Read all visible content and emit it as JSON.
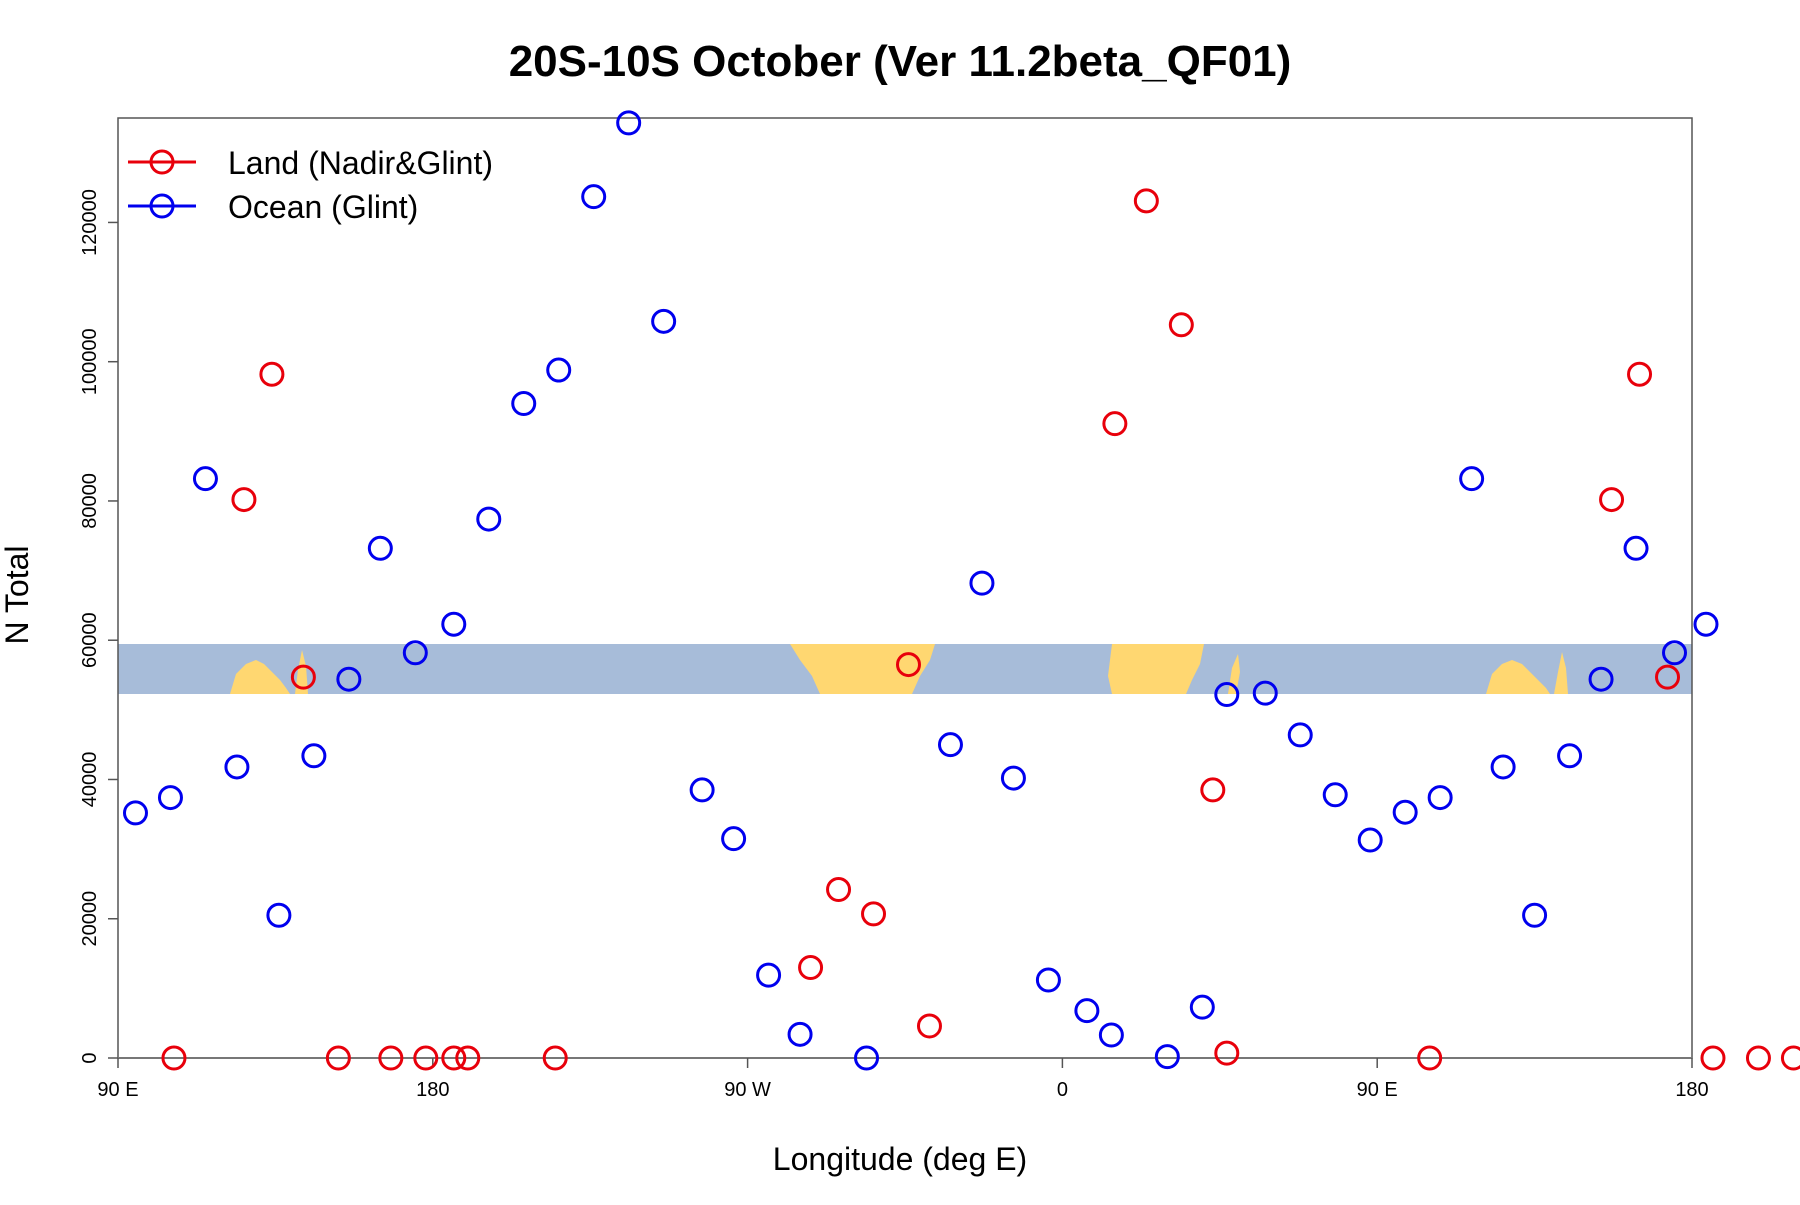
{
  "chart_data": {
    "type": "scatter",
    "title": "20S-10S October (Ver 11.2beta_QF01)",
    "xlabel": "Longitude (deg E)",
    "ylabel": "N Total",
    "xlim": [
      90,
      540
    ],
    "ylim": [
      0,
      135000
    ],
    "x_ticks": [
      {
        "value": 90,
        "label": "90 E"
      },
      {
        "value": 180,
        "label": "180"
      },
      {
        "value": 270,
        "label": "90 W"
      },
      {
        "value": 360,
        "label": "0"
      },
      {
        "value": 450,
        "label": "90 E"
      },
      {
        "value": 540,
        "label": "180"
      }
    ],
    "y_ticks": [
      {
        "value": 0,
        "label": "0"
      },
      {
        "value": 20000,
        "label": "20000"
      },
      {
        "value": 40000,
        "label": "40000"
      },
      {
        "value": 60000,
        "label": "60000"
      },
      {
        "value": 80000,
        "label": "80000"
      },
      {
        "value": 100000,
        "label": "100000"
      },
      {
        "value": 120000,
        "label": "120000"
      }
    ],
    "legend_position": "top-left",
    "grid": false,
    "map_strip": {
      "ocean_color": "#a7bcd9",
      "land_color": "#ffd771"
    },
    "series": [
      {
        "name": "Land (Nadir&Glint)",
        "color": "#e8000b",
        "points": [
          [
            106,
            0
          ],
          [
            126,
            80200
          ],
          [
            134,
            98200
          ],
          [
            143,
            54700
          ],
          [
            153,
            0
          ],
          [
            168,
            0
          ],
          [
            178,
            0
          ],
          [
            186,
            0
          ],
          [
            190,
            0
          ],
          [
            215,
            0
          ],
          [
            288,
            13000
          ],
          [
            296,
            24200
          ],
          [
            306,
            20700
          ],
          [
            316,
            56500
          ],
          [
            322,
            4600
          ],
          [
            375,
            91100
          ],
          [
            384,
            123100
          ],
          [
            394,
            105300
          ],
          [
            403,
            38500
          ],
          [
            407,
            700
          ],
          [
            465,
            0
          ],
          [
            517,
            80200
          ],
          [
            525,
            98200
          ],
          [
            533,
            54700
          ],
          [
            546,
            0
          ],
          [
            559,
            0
          ],
          [
            569,
            0
          ]
        ]
      },
      {
        "name": "Ocean (Glint)",
        "color": "#0000ee",
        "points": [
          [
            95,
            35200
          ],
          [
            105,
            37400
          ],
          [
            115,
            83200
          ],
          [
            124,
            41800
          ],
          [
            136,
            20500
          ],
          [
            146,
            43400
          ],
          [
            156,
            54400
          ],
          [
            165,
            73200
          ],
          [
            175,
            58200
          ],
          [
            186,
            62300
          ],
          [
            196,
            77400
          ],
          [
            206,
            94000
          ],
          [
            216,
            98800
          ],
          [
            226,
            123700
          ],
          [
            236,
            134300
          ],
          [
            246,
            105800
          ],
          [
            257,
            38500
          ],
          [
            266,
            31500
          ],
          [
            276,
            11900
          ],
          [
            285,
            3400
          ],
          [
            304,
            0
          ],
          [
            328,
            45000
          ],
          [
            337,
            68200
          ],
          [
            346,
            40200
          ],
          [
            356,
            11200
          ],
          [
            367,
            6800
          ],
          [
            374,
            3300
          ],
          [
            390,
            200
          ],
          [
            400,
            7300
          ],
          [
            407,
            52200
          ],
          [
            418,
            52400
          ],
          [
            428,
            46400
          ],
          [
            438,
            37800
          ],
          [
            448,
            31300
          ],
          [
            458,
            35300
          ],
          [
            468,
            37400
          ],
          [
            477,
            83200
          ],
          [
            486,
            41800
          ],
          [
            495,
            20500
          ],
          [
            505,
            43400
          ],
          [
            514,
            54400
          ],
          [
            524,
            73200
          ],
          [
            535,
            58200
          ],
          [
            544,
            62300
          ]
        ]
      }
    ]
  }
}
